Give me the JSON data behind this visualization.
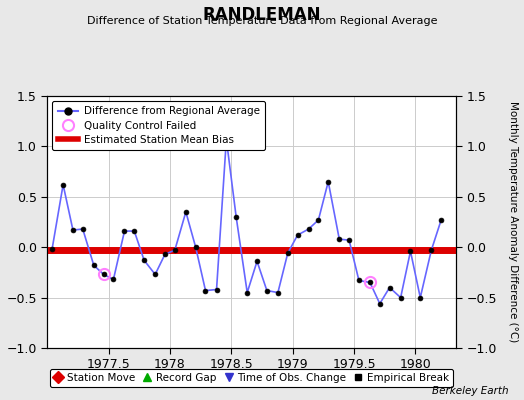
{
  "title": "RANDLEMAN",
  "subtitle": "Difference of Station Temperature Data from Regional Average",
  "ylabel": "Monthly Temperature Anomaly Difference (°C)",
  "credit": "Berkeley Earth",
  "xlim": [
    1977.0,
    1980.33
  ],
  "ylim": [
    -1.0,
    1.5
  ],
  "yticks_left": [
    -1.0,
    -0.5,
    0.0,
    0.5,
    1.0,
    1.5
  ],
  "yticks_right": [
    -1.0,
    -0.5,
    0.0,
    0.5,
    1.0,
    1.5
  ],
  "xticks": [
    1977.5,
    1978.0,
    1978.5,
    1979.0,
    1979.5,
    1980.0
  ],
  "xticklabels": [
    "1977.5",
    "1978",
    "1978.5",
    "1979",
    "1979.5",
    "1980"
  ],
  "bias": -0.03,
  "background_color": "#e8e8e8",
  "plot_bg_color": "#ffffff",
  "line_color": "#6666ff",
  "marker_color": "#000000",
  "bias_color": "#dd0000",
  "qc_fail_color": "#ff80ff",
  "x": [
    1977.04,
    1977.13,
    1977.21,
    1977.29,
    1977.38,
    1977.46,
    1977.54,
    1977.63,
    1977.71,
    1977.79,
    1977.88,
    1977.96,
    1978.04,
    1978.13,
    1978.21,
    1978.29,
    1978.38,
    1978.46,
    1978.54,
    1978.63,
    1978.71,
    1978.79,
    1978.88,
    1978.96,
    1979.04,
    1979.13,
    1979.21,
    1979.29,
    1979.38,
    1979.46,
    1979.54,
    1979.63,
    1979.71,
    1979.79,
    1979.88,
    1979.96,
    1980.04,
    1980.13,
    1980.21
  ],
  "y": [
    -0.02,
    0.62,
    0.17,
    0.18,
    -0.18,
    -0.27,
    -0.32,
    0.16,
    0.16,
    -0.13,
    -0.27,
    -0.07,
    -0.03,
    0.35,
    0.0,
    -0.43,
    -0.42,
    1.07,
    0.3,
    -0.45,
    -0.14,
    -0.43,
    -0.45,
    -0.06,
    0.12,
    0.18,
    0.27,
    0.65,
    0.08,
    0.07,
    -0.33,
    -0.35,
    -0.56,
    -0.4,
    -0.5,
    -0.04,
    -0.5,
    -0.03,
    0.27
  ],
  "qc_fail_indices": [
    5,
    17,
    31
  ],
  "bottom_legend": [
    {
      "label": "Station Move",
      "color": "#dd0000",
      "marker": "D",
      "ms": 6
    },
    {
      "label": "Record Gap",
      "color": "#00aa00",
      "marker": "^",
      "ms": 6
    },
    {
      "label": "Time of Obs. Change",
      "color": "#3333cc",
      "marker": "v",
      "ms": 6
    },
    {
      "label": "Empirical Break",
      "color": "#000000",
      "marker": "s",
      "ms": 5
    }
  ]
}
